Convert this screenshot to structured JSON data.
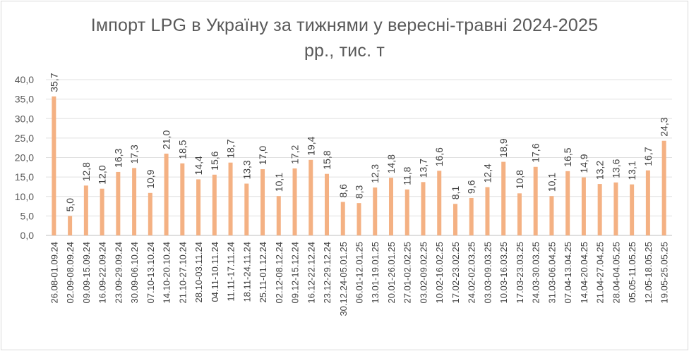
{
  "chart_data": {
    "type": "bar",
    "title_line1": "Імпорт LPG в Україну за тижнями у вересні-травні 2024-2025",
    "title_line2": "рр., тис. т",
    "color": "#F4B183",
    "grid": true,
    "ylim": [
      0,
      40
    ],
    "y_ticks": [
      "0,0",
      "5,0",
      "10,0",
      "15,0",
      "20,0",
      "25,0",
      "30,0",
      "35,0",
      "40,0"
    ],
    "categories": [
      "26.08-01.09.24",
      "02.09-08.09.24",
      "09.09-15.09.24",
      "16.09-22.09.24",
      "23.09-29.09.24",
      "30.09-06.10.24",
      "07.10-13.10.24",
      "14.10-20.10.24",
      "21.10-27.10.24",
      "28.10-03.11.24",
      "04.11-10.11.24",
      "11.11-17.11.24",
      "18.11-24.11.24",
      "25.11-01.12.24",
      "02.12-08.12.24",
      "09.12-15.12.24",
      "16.12-22.12.24",
      "23.12-29.12.24",
      "30.12.24-05.01.25",
      "06.01-12.01.25",
      "13.01-19.01.25",
      "20.01-26.01.25",
      "27.01-02.02.25",
      "03.02-09.02.25",
      "10.02-16.02.25",
      "17.02-23.02.25",
      "24.02-02.03.25",
      "03.03-09.03.25",
      "10.03-16.03.25",
      "17.03-23.03.25",
      "24.03-30.03.25",
      "31.03-06.04.25",
      "07.04-13.04.25",
      "14.04-20.04.25",
      "21.04-27.04.25",
      "28.04-04.05.25",
      "05.05-11.05.25",
      "12.05-18.05.25",
      "19.05-25.05.25"
    ],
    "values": [
      35.7,
      5.0,
      12.8,
      12.0,
      16.3,
      17.3,
      10.9,
      21.0,
      18.5,
      14.4,
      15.6,
      18.7,
      13.3,
      17.0,
      10.1,
      17.2,
      19.4,
      15.8,
      8.6,
      8.3,
      12.3,
      14.8,
      11.8,
      13.7,
      16.6,
      8.1,
      9.6,
      12.4,
      18.9,
      10.8,
      17.6,
      10.1,
      16.5,
      14.9,
      13.2,
      13.6,
      13.1,
      16.7,
      24.3
    ],
    "labels": [
      "35,7",
      "5,0",
      "12,8",
      "12,0",
      "16,3",
      "17,3",
      "10,9",
      "21,0",
      "18,5",
      "14,4",
      "15,6",
      "18,7",
      "13,3",
      "17,0",
      "10,1",
      "17,2",
      "19,4",
      "15,8",
      "8,6",
      "8,3",
      "12,3",
      "14,8",
      "11,8",
      "13,7",
      "16,6",
      "8,1",
      "9,6",
      "12,4",
      "18,9",
      "10,8",
      "17,6",
      "10,1",
      "16,5",
      "14,9",
      "13,2",
      "13,6",
      "13,1",
      "16,7",
      "24,3"
    ]
  }
}
